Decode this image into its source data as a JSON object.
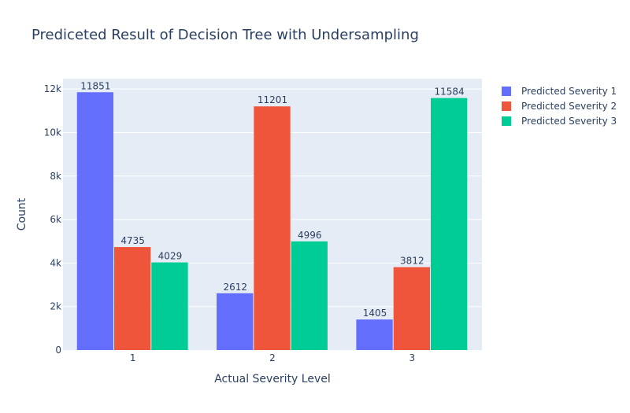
{
  "chart_data": {
    "type": "bar",
    "title": "Prediceted Result of Decision Tree with Undersampling",
    "xlabel": "Actual Severity Level",
    "ylabel": "Count",
    "categories": [
      "1",
      "2",
      "3"
    ],
    "ylim": [
      0,
      12475
    ],
    "yticks": [
      0,
      2000,
      4000,
      6000,
      8000,
      10000,
      12000
    ],
    "ytick_labels": [
      "0",
      "2k",
      "4k",
      "6k",
      "8k",
      "10k",
      "12k"
    ],
    "grid": true,
    "legend_position": "top-right",
    "series": [
      {
        "name": "Predicted Severity 1",
        "color": "#636efa",
        "values": [
          11851,
          2612,
          1405
        ]
      },
      {
        "name": "Predicted Severity 2",
        "color": "#ef553b",
        "values": [
          4735,
          11201,
          3812
        ]
      },
      {
        "name": "Predicted Severity 3",
        "color": "#00cc96",
        "values": [
          4029,
          4996,
          11584
        ]
      }
    ]
  }
}
